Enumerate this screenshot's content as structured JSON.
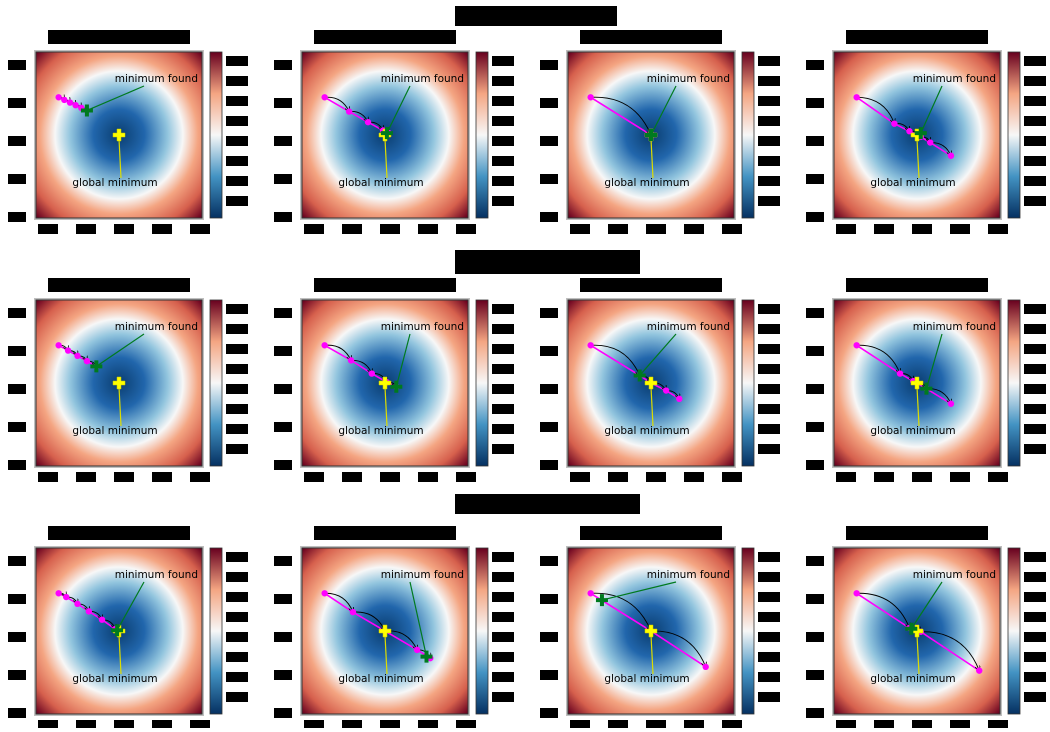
{
  "labels": {
    "found": "minimum found",
    "global": "global minimum"
  },
  "colors": {
    "path": "#ff00ff",
    "found_marker": "#007a1f",
    "global_marker": "#ffff00",
    "arrow": "#000000",
    "global_line": "#dddd00",
    "found_line": "#007a1f",
    "redaction": "#000000"
  },
  "colormap": {
    "name": "RdBu_r",
    "center_color": "#0a3d6f",
    "mid_color": "#f7f7f7",
    "edge_color": "#67001f"
  },
  "chart_data": [
    {
      "type": "scatter",
      "row": 0,
      "col": 0,
      "x": [
        -1.6,
        -1.45,
        -1.3,
        -1.15,
        -1.0,
        -0.85
      ],
      "y": [
        1.0,
        0.93,
        0.86,
        0.79,
        0.72,
        0.65
      ],
      "found": [
        -0.85,
        0.65
      ],
      "global": [
        0,
        0
      ]
    },
    {
      "type": "scatter",
      "row": 0,
      "col": 1,
      "x": [
        -1.6,
        -0.95,
        -0.45,
        -0.05,
        0.1
      ],
      "y": [
        1.0,
        0.62,
        0.34,
        0.12,
        0.05
      ],
      "found": [
        0.05,
        0.05
      ],
      "global": [
        0,
        0
      ]
    },
    {
      "type": "scatter",
      "row": 0,
      "col": 2,
      "x": [
        -1.6,
        0.0
      ],
      "y": [
        1.0,
        0.0
      ],
      "found": [
        0.0,
        0.0
      ],
      "global": [
        0,
        0
      ]
    },
    {
      "type": "scatter",
      "row": 0,
      "col": 3,
      "x": [
        -1.6,
        -0.6,
        -0.2,
        0.1,
        0.35,
        0.9
      ],
      "y": [
        1.0,
        0.3,
        0.1,
        -0.05,
        -0.2,
        -0.55
      ],
      "found": [
        0.1,
        0.05
      ],
      "global": [
        0,
        0
      ]
    },
    {
      "type": "scatter",
      "row": 1,
      "col": 0,
      "x": [
        -1.6,
        -1.35,
        -1.1,
        -0.85,
        -0.6
      ],
      "y": [
        1.0,
        0.86,
        0.72,
        0.58,
        0.44
      ],
      "found": [
        -0.6,
        0.44
      ],
      "global": [
        0,
        0
      ]
    },
    {
      "type": "scatter",
      "row": 1,
      "col": 1,
      "x": [
        -1.6,
        -0.9,
        -0.35,
        0.05,
        0.3
      ],
      "y": [
        1.0,
        0.6,
        0.25,
        0.02,
        -0.1
      ],
      "found": [
        0.3,
        -0.1
      ],
      "global": [
        0,
        0
      ]
    },
    {
      "type": "scatter",
      "row": 1,
      "col": 2,
      "x": [
        -1.6,
        -0.3,
        0.0,
        0.4,
        0.75
      ],
      "y": [
        1.0,
        0.2,
        0.0,
        -0.2,
        -0.42
      ],
      "found": [
        -0.3,
        0.2
      ],
      "global": [
        0,
        0
      ]
    },
    {
      "type": "scatter",
      "row": 1,
      "col": 3,
      "x": [
        -1.6,
        -0.45,
        -0.1,
        0.25,
        0.9
      ],
      "y": [
        1.0,
        0.25,
        0.05,
        -0.15,
        -0.55
      ],
      "found": [
        0.25,
        -0.15
      ],
      "global": [
        0,
        0
      ]
    },
    {
      "type": "scatter",
      "row": 2,
      "col": 0,
      "x": [
        -1.6,
        -1.4,
        -1.1,
        -0.8,
        -0.45,
        -0.1
      ],
      "y": [
        1.0,
        0.9,
        0.72,
        0.52,
        0.3,
        0.05
      ],
      "found": [
        -0.05,
        0.02
      ],
      "global": [
        0,
        0
      ]
    },
    {
      "type": "scatter",
      "row": 2,
      "col": 1,
      "x": [
        -1.6,
        -0.85,
        0.0,
        0.85,
        1.2
      ],
      "y": [
        1.0,
        0.5,
        0.0,
        -0.5,
        -0.72
      ],
      "found": [
        1.1,
        -0.68
      ],
      "global": [
        0,
        0
      ]
    },
    {
      "type": "scatter",
      "row": 2,
      "col": 2,
      "x": [
        -1.6,
        0.0,
        1.45
      ],
      "y": [
        1.0,
        0.0,
        -0.95
      ],
      "found": [
        -1.3,
        0.82
      ],
      "global": [
        0,
        0
      ]
    },
    {
      "type": "scatter",
      "row": 2,
      "col": 3,
      "x": [
        -1.6,
        -0.2,
        0.1,
        1.65
      ],
      "y": [
        1.0,
        0.08,
        -0.02,
        -1.05
      ],
      "found": [
        -0.15,
        0.06
      ],
      "global": [
        0,
        0
      ]
    }
  ]
}
